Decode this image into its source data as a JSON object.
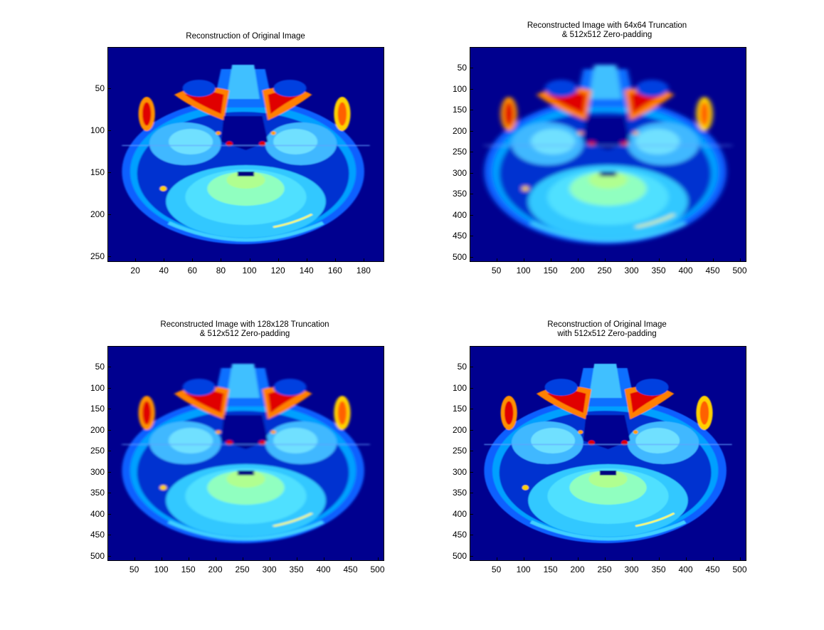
{
  "figure": {
    "panels": [
      {
        "id": "p1",
        "title_lines": [
          "Reconstruction of Original Image"
        ],
        "xlim": [
          0.5,
          194.5
        ],
        "ylim": [
          0.5,
          256.5
        ],
        "xticks": [
          20,
          40,
          60,
          80,
          100,
          120,
          140,
          160,
          180
        ],
        "yticks": [
          50,
          100,
          150,
          200,
          250
        ],
        "image": "axial brain MRI slice, jet colormap"
      },
      {
        "id": "p2",
        "title_lines": [
          "Reconstructed Image with 64x64 Truncation",
          "& 512x512 Zero-padding"
        ],
        "xlim": [
          0.5,
          512.5
        ],
        "ylim": [
          0.5,
          512.5
        ],
        "xticks": [
          50,
          100,
          150,
          200,
          250,
          300,
          350,
          400,
          450,
          500
        ],
        "yticks": [
          50,
          100,
          150,
          200,
          250,
          300,
          350,
          400,
          450,
          500
        ],
        "image": "axial brain MRI slice, jet colormap, blurred"
      },
      {
        "id": "p3",
        "title_lines": [
          "Reconstructed Image with 128x128 Truncation",
          "& 512x512 Zero-padding"
        ],
        "xlim": [
          0.5,
          512.5
        ],
        "ylim": [
          0.5,
          512.5
        ],
        "xticks": [
          50,
          100,
          150,
          200,
          250,
          300,
          350,
          400,
          450,
          500
        ],
        "yticks": [
          50,
          100,
          150,
          200,
          250,
          300,
          350,
          400,
          450,
          500
        ],
        "image": "axial brain MRI slice, jet colormap"
      },
      {
        "id": "p4",
        "title_lines": [
          "Reconstruction of Original Image",
          "with 512x512 Zero-padding"
        ],
        "xlim": [
          0.5,
          512.5
        ],
        "ylim": [
          0.5,
          512.5
        ],
        "xticks": [
          50,
          100,
          150,
          200,
          250,
          300,
          350,
          400,
          450,
          500
        ],
        "yticks": [
          50,
          100,
          150,
          200,
          250,
          300,
          350,
          400,
          450,
          500
        ],
        "image": "axial brain MRI slice, jet colormap"
      }
    ],
    "colors": {
      "background": "#00008f",
      "low": "#0000c8",
      "cyan": "#30c8ff",
      "green": "#80ffb0",
      "yellow": "#ffff30",
      "red": "#e00000"
    }
  }
}
